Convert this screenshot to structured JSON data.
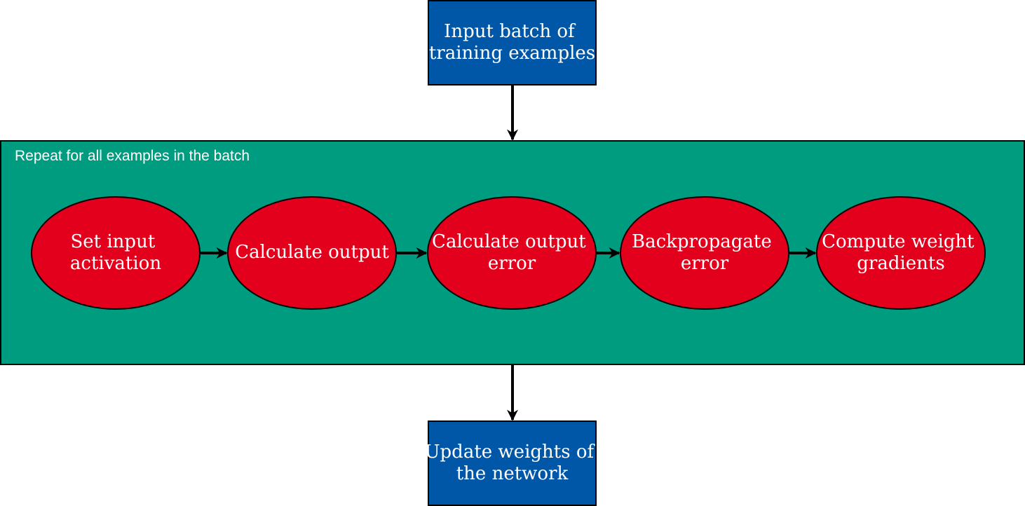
{
  "colors": {
    "box_fill": "#0057a8",
    "group_fill": "#009c80",
    "ellipse_fill": "#e3001c",
    "stroke": "#000000",
    "text": "#ffffff",
    "arrow": "#000000"
  },
  "diagram": {
    "top_box": {
      "line1": "Input batch of",
      "line2": "training examples"
    },
    "group": {
      "label": "Repeat for all examples in the batch"
    },
    "steps": [
      {
        "line1": "Set input",
        "line2": "activation"
      },
      {
        "line1": "Calculate output",
        "line2": ""
      },
      {
        "line1": "Calculate output",
        "line2": "error"
      },
      {
        "line1": "Backpropagate",
        "line2": "error"
      },
      {
        "line1": "Compute weight",
        "line2": "gradients"
      }
    ],
    "bottom_box": {
      "line1": "Update weights of",
      "line2": "the network"
    }
  }
}
